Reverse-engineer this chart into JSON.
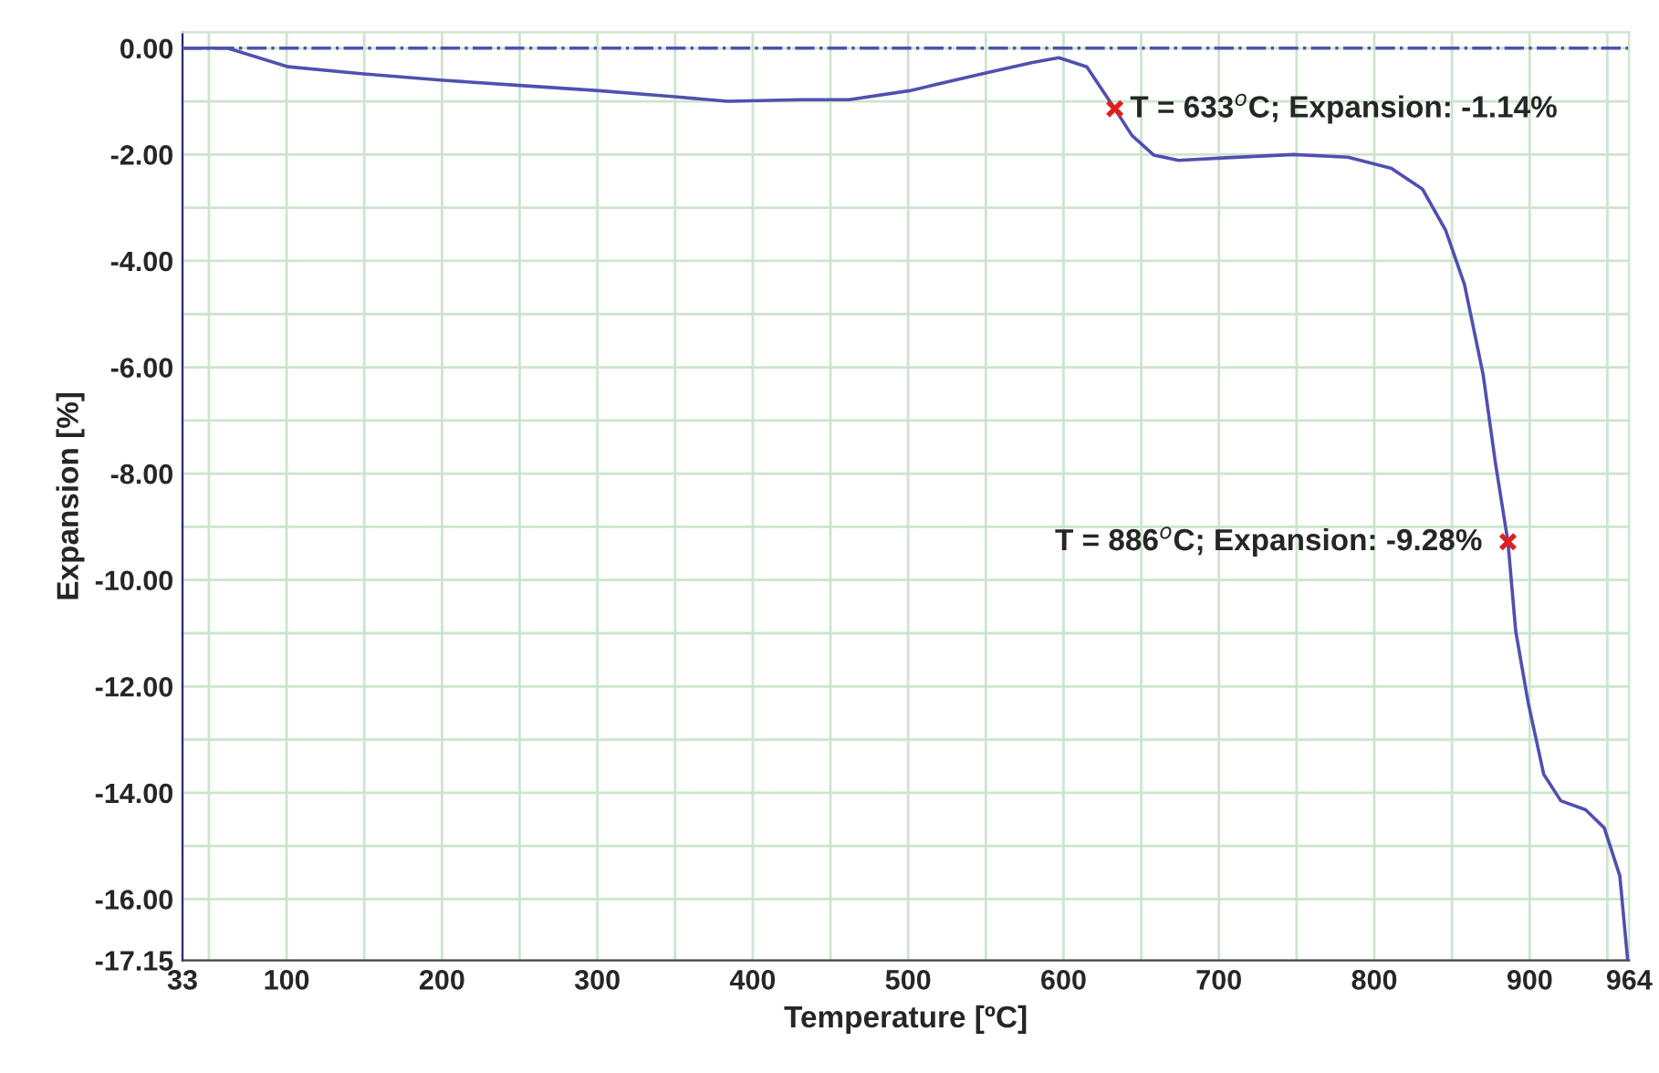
{
  "chart_data": {
    "type": "line",
    "xlabel": "Temperature [ºC]",
    "ylabel": "Expansion [%]",
    "xlim": [
      33,
      964
    ],
    "ylim": [
      -17.15,
      0.3
    ],
    "xticks": [
      33,
      {
        "value": 50,
        "label": null
      },
      100,
      {
        "value": 150,
        "label": null
      },
      200,
      {
        "value": 250,
        "label": null
      },
      300,
      {
        "value": 350,
        "label": null
      },
      400,
      {
        "value": 450,
        "label": null
      },
      500,
      {
        "value": 550,
        "label": null
      },
      600,
      {
        "value": 650,
        "label": null
      },
      700,
      {
        "value": 750,
        "label": null
      },
      800,
      {
        "value": 850,
        "label": null
      },
      900,
      {
        "value": 950,
        "label": null
      },
      964
    ],
    "yticks": [
      {
        "value": 0,
        "label": "0.00"
      },
      {
        "value": -1,
        "label": null
      },
      {
        "value": -2,
        "label": "-2.00"
      },
      {
        "value": -3,
        "label": null
      },
      {
        "value": -4,
        "label": "-4.00"
      },
      {
        "value": -5,
        "label": null
      },
      {
        "value": -6,
        "label": "-6.00"
      },
      {
        "value": -7,
        "label": null
      },
      {
        "value": -8,
        "label": "-8.00"
      },
      {
        "value": -9,
        "label": null
      },
      {
        "value": -10,
        "label": "-10.00"
      },
      {
        "value": -11,
        "label": null
      },
      {
        "value": -12,
        "label": "-12.00"
      },
      {
        "value": -13,
        "label": null
      },
      {
        "value": -14,
        "label": "-14.00"
      },
      {
        "value": -15,
        "label": null
      },
      {
        "value": -16,
        "label": "-16.00"
      },
      {
        "value": -17.15,
        "label": "-17.15"
      }
    ],
    "grid": true,
    "ref_lines": [
      {
        "axis": "y",
        "value": 0,
        "color": "#5050b0",
        "line_style": "dashdot"
      }
    ],
    "series": [
      {
        "color": "#5050b0",
        "marker": "none",
        "line_style": "solid",
        "x": [
          33,
          62,
          101,
          148,
          199,
          250,
          301,
          348,
          384,
          431,
          462,
          501,
          548,
          580,
          597,
          615,
          633,
          644,
          658,
          674,
          705,
          748,
          783,
          811,
          831,
          846,
          858,
          870,
          878,
          886,
          891,
          899,
          909,
          920,
          936,
          948,
          958,
          963,
          964
        ],
        "values": [
          0,
          0,
          -0.35,
          -0.48,
          -0.6,
          -0.7,
          -0.8,
          -0.91,
          -1.0,
          -0.97,
          -0.97,
          -0.8,
          -0.48,
          -0.27,
          -0.18,
          -0.35,
          -1.14,
          -1.64,
          -2.01,
          -2.11,
          -2.06,
          -2.0,
          -2.05,
          -2.26,
          -2.65,
          -3.43,
          -4.44,
          -6.13,
          -7.81,
          -9.28,
          -10.96,
          -12.3,
          -13.65,
          -14.15,
          -14.32,
          -14.66,
          -15.56,
          -17.13,
          -17.15
        ]
      },
      {
        "type": "scatter",
        "color": "#e02020",
        "marker": "cross",
        "x": [
          633,
          886
        ],
        "values": [
          -1.14,
          -9.28
        ]
      }
    ],
    "annotations": [
      {
        "text": "T = 633$^{o}$C; Expansion: -1.14%",
        "x": 633,
        "y": -1.14
      },
      {
        "text": "T = 886$^{o}$C; Expansion: -9.28%",
        "x": 886,
        "y": -9.28
      }
    ]
  }
}
